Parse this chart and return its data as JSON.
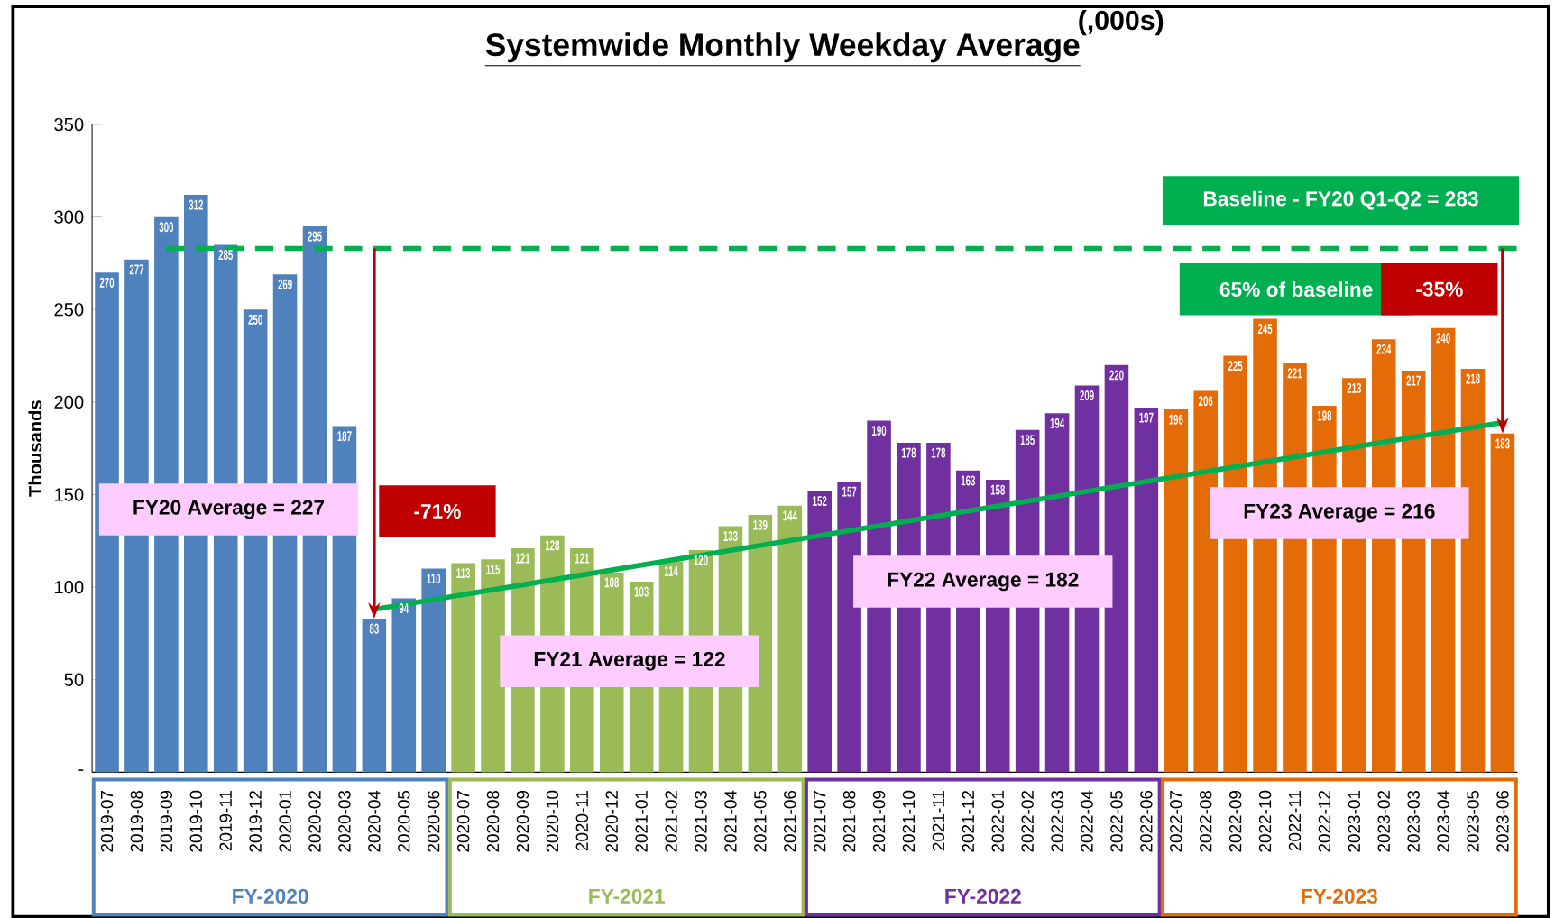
{
  "chart_data": {
    "type": "bar",
    "title": "Systemwide Monthly Weekday Average",
    "subtitle": "(,000s)",
    "ylabel": "Thousands",
    "categories": [
      "2019-07",
      "2019-08",
      "2019-09",
      "2019-10",
      "2019-11",
      "2019-12",
      "2020-01",
      "2020-02",
      "2020-03",
      "2020-04",
      "2020-05",
      "2020-06",
      "2020-07",
      "2020-08",
      "2020-09",
      "2020-10",
      "2020-11",
      "2020-12",
      "2021-01",
      "2021-02",
      "2021-03",
      "2021-04",
      "2021-05",
      "2021-06",
      "2021-07",
      "2021-08",
      "2021-09",
      "2021-10",
      "2021-11",
      "2021-12",
      "2022-01",
      "2022-02",
      "2022-03",
      "2022-04",
      "2022-05",
      "2022-06",
      "2022-07",
      "2022-08",
      "2022-09",
      "2022-10",
      "2022-11",
      "2022-12",
      "2023-01",
      "2023-02",
      "2023-03",
      "2023-04",
      "2023-05",
      "2023-06"
    ],
    "series": [
      {
        "name": "FY-2020",
        "color": "#4f81bd",
        "values": [
          270,
          277,
          300,
          312,
          285,
          250,
          269,
          295,
          187,
          83,
          94,
          110,
          null,
          null,
          null,
          null,
          null,
          null,
          null,
          null,
          null,
          null,
          null,
          null,
          null,
          null,
          null,
          null,
          null,
          null,
          null,
          null,
          null,
          null,
          null,
          null,
          null,
          null,
          null,
          null,
          null,
          null,
          null,
          null,
          null,
          null,
          null,
          null
        ]
      },
      {
        "name": "FY-2021",
        "color": "#9bbb59",
        "values": [
          null,
          null,
          null,
          null,
          null,
          null,
          null,
          null,
          null,
          null,
          null,
          null,
          113,
          115,
          121,
          128,
          121,
          108,
          103,
          114,
          120,
          133,
          139,
          144,
          null,
          null,
          null,
          null,
          null,
          null,
          null,
          null,
          null,
          null,
          null,
          null,
          null,
          null,
          null,
          null,
          null,
          null,
          null,
          null,
          null,
          null,
          null,
          null
        ]
      },
      {
        "name": "FY-2022",
        "color": "#7030a0",
        "values": [
          null,
          null,
          null,
          null,
          null,
          null,
          null,
          null,
          null,
          null,
          null,
          null,
          null,
          null,
          null,
          null,
          null,
          null,
          null,
          null,
          null,
          null,
          null,
          null,
          152,
          157,
          190,
          178,
          178,
          163,
          158,
          185,
          194,
          209,
          220,
          197,
          null,
          null,
          null,
          null,
          null,
          null,
          null,
          null,
          null,
          null,
          null,
          null
        ]
      },
      {
        "name": "FY-2023",
        "color": "#e36c09",
        "values": [
          null,
          null,
          null,
          null,
          null,
          null,
          null,
          null,
          null,
          null,
          null,
          null,
          null,
          null,
          null,
          null,
          null,
          null,
          null,
          null,
          null,
          null,
          null,
          null,
          null,
          null,
          null,
          null,
          null,
          null,
          null,
          null,
          null,
          null,
          null,
          null,
          196,
          206,
          225,
          245,
          221,
          198,
          213,
          234,
          217,
          240,
          218,
          183
        ]
      },
      {
        "type": "line",
        "color": "#00b050",
        "data_labels": false,
        "values": [
          null,
          null,
          null,
          null,
          null,
          null,
          null,
          null,
          null,
          88,
          null,
          null,
          null,
          null,
          null,
          null,
          null,
          null,
          null,
          null,
          null,
          null,
          null,
          null,
          null,
          null,
          null,
          null,
          null,
          null,
          null,
          null,
          null,
          null,
          null,
          null,
          null,
          null,
          null,
          null,
          null,
          null,
          null,
          null,
          null,
          null,
          null,
          189
        ]
      }
    ],
    "data_labels": true,
    "ylim": [
      0,
      350
    ],
    "yticks": [
      {
        "value": 0,
        "label": "-"
      },
      50,
      100,
      150,
      200,
      250,
      300,
      350
    ],
    "ref_lines": [
      {
        "axis": "y",
        "value": 283,
        "label": "Baseline - FY20 Q1-Q2 = 283",
        "color": "#00b050",
        "line_style": "dashed"
      }
    ],
    "annotations": [
      "FY20 Average = 227",
      "FY21 Average = 122",
      "FY22 Average = 182",
      "FY23 Average = 216",
      "65% of baseline",
      "-71%",
      "-35%"
    ],
    "grid": false
  }
}
